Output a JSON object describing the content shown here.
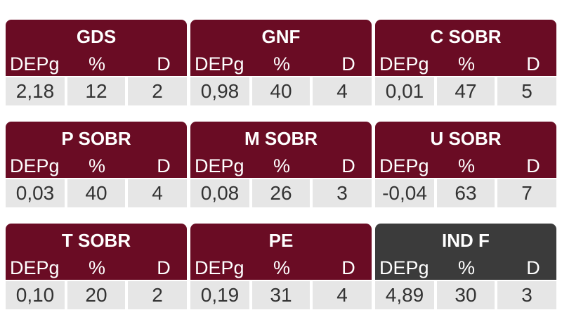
{
  "cards": [
    {
      "title": "GDS",
      "color": "#6a0c24",
      "headers": [
        "DEPg",
        "%",
        "D"
      ],
      "values": [
        "2,18",
        "12",
        "2"
      ]
    },
    {
      "title": "GNF",
      "color": "#6a0c24",
      "headers": [
        "DEPg",
        "%",
        "D"
      ],
      "values": [
        "0,98",
        "40",
        "4"
      ]
    },
    {
      "title": "C SOBR",
      "color": "#6a0c24",
      "headers": [
        "DEPg",
        "%",
        "D"
      ],
      "values": [
        "0,01",
        "47",
        "5"
      ]
    },
    {
      "title": "P SOBR",
      "color": "#6a0c24",
      "headers": [
        "DEPg",
        "%",
        "D"
      ],
      "values": [
        "0,03",
        "40",
        "4"
      ]
    },
    {
      "title": "M SOBR",
      "color": "#6a0c24",
      "headers": [
        "DEPg",
        "%",
        "D"
      ],
      "values": [
        "0,08",
        "26",
        "3"
      ]
    },
    {
      "title": "U SOBR",
      "color": "#6a0c24",
      "headers": [
        "DEPg",
        "%",
        "D"
      ],
      "values": [
        "-0,04",
        "63",
        "7"
      ]
    },
    {
      "title": "T SOBR",
      "color": "#6a0c24",
      "headers": [
        "DEPg",
        "%",
        "D"
      ],
      "values": [
        "0,10",
        "20",
        "2"
      ]
    },
    {
      "title": "PE",
      "color": "#6a0c24",
      "headers": [
        "DEPg",
        "%",
        "D"
      ],
      "values": [
        "0,19",
        "31",
        "4"
      ]
    },
    {
      "title": "IND F",
      "color": "#3b3b3b",
      "headers": [
        "DEPg",
        "%",
        "D"
      ],
      "values": [
        "4,89",
        "30",
        "3"
      ]
    }
  ]
}
